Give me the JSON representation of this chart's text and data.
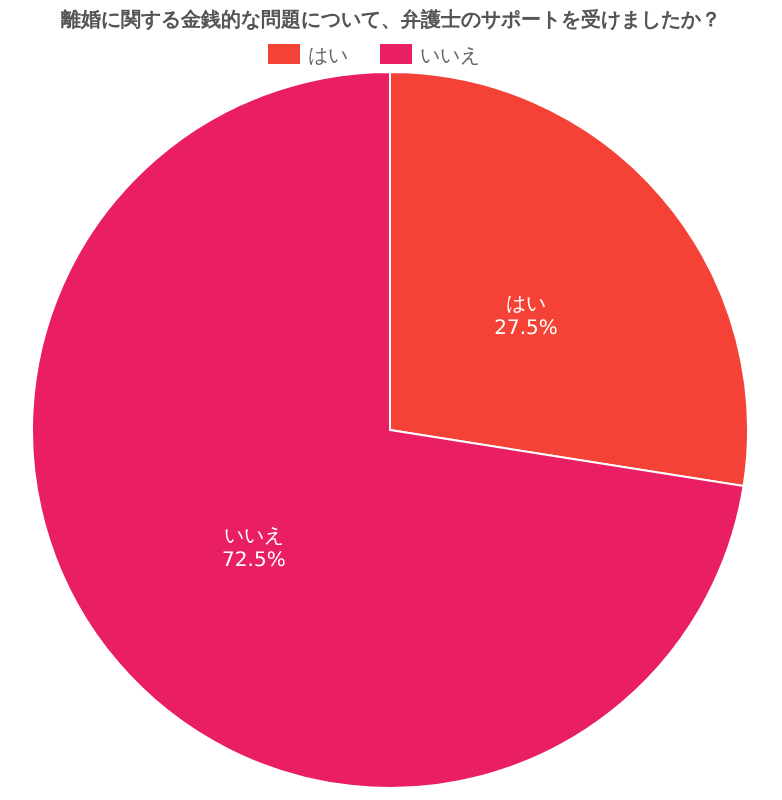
{
  "chart_data": {
    "type": "pie",
    "title": "離婚に関する金銭的な問題について、弁護士のサポートを受けましたか？",
    "categories": [
      "はい",
      "いいえ"
    ],
    "values": [
      27.5,
      72.5
    ],
    "value_labels": [
      "27.5%",
      "72.5%"
    ],
    "colors": [
      "#f44336",
      "#e91e63"
    ],
    "legend": "top"
  }
}
